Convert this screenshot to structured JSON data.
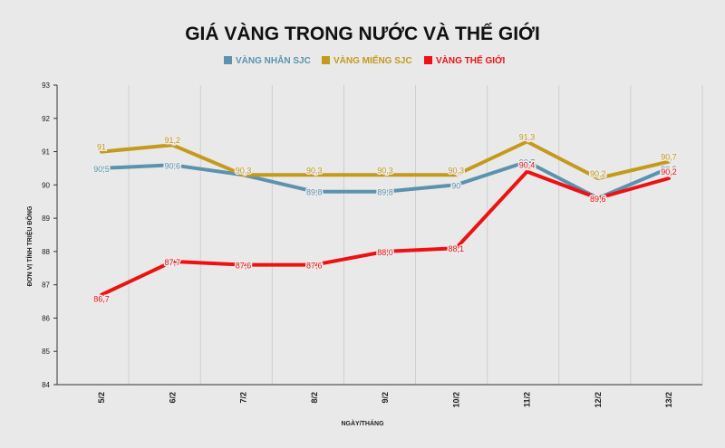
{
  "chart_data": {
    "type": "line",
    "title": "GIÁ VÀNG TRONG NƯỚC VÀ THẾ GIỚI",
    "xlabel": "NGÀY/THÁNG",
    "ylabel": "ĐƠN VỊ TÍNH TRIỆU ĐỒNG",
    "categories": [
      "5/2",
      "6/2",
      "7/2",
      "8/2",
      "9/2",
      "10/2",
      "11/2",
      "12/2",
      "13/2"
    ],
    "ylim": [
      84,
      93
    ],
    "yticks": [
      "84",
      "85",
      "86",
      "87",
      "88",
      "89",
      "90",
      "91",
      "92",
      "93"
    ],
    "grid": "vertical",
    "legend_position": "top",
    "series": [
      {
        "name": "Vàng nhẫn SJC",
        "color": "#5b93ae",
        "values": [
          90.5,
          90.6,
          90.3,
          89.8,
          89.8,
          90.0,
          90.7,
          89.6,
          90.5
        ],
        "labels": [
          "90,5",
          "90,6",
          "",
          "89,8",
          "89,8",
          "90",
          "90,7",
          "",
          "90,5"
        ]
      },
      {
        "name": "Vàng miếng SJC",
        "color": "#c49a1c",
        "values": [
          91.0,
          91.2,
          90.3,
          90.3,
          90.3,
          90.3,
          91.3,
          90.2,
          90.7
        ],
        "labels": [
          "91",
          "91,2",
          "90,3",
          "90,3",
          "90,3",
          "90,3",
          "91,3",
          "90,2",
          "90,7"
        ]
      },
      {
        "name": "Vàng thế giới",
        "color": "#ee1111",
        "values": [
          86.7,
          87.7,
          87.6,
          87.6,
          88.0,
          88.1,
          90.4,
          89.6,
          90.2
        ],
        "labels": [
          "86,7",
          "87,7",
          "87,6",
          "87,6",
          "88,0",
          "88,1",
          "90,4",
          "89,6",
          "90,2"
        ]
      }
    ],
    "legend_labels": [
      "VÀNG NHẪN SJC",
      "VÀNG MIẾNG SJC",
      "VÀNG THẾ GIỚI"
    ]
  }
}
